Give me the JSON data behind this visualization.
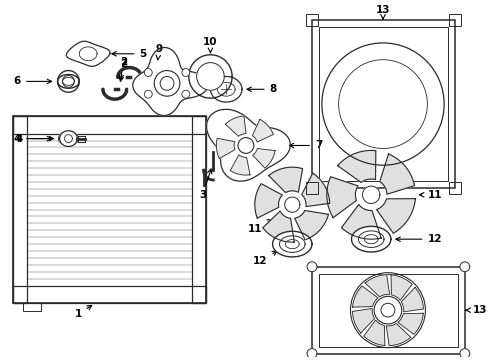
{
  "bg_color": "#ffffff",
  "line_color": "#2a2a2a",
  "figsize": [
    4.9,
    3.6
  ],
  "dpi": 100
}
